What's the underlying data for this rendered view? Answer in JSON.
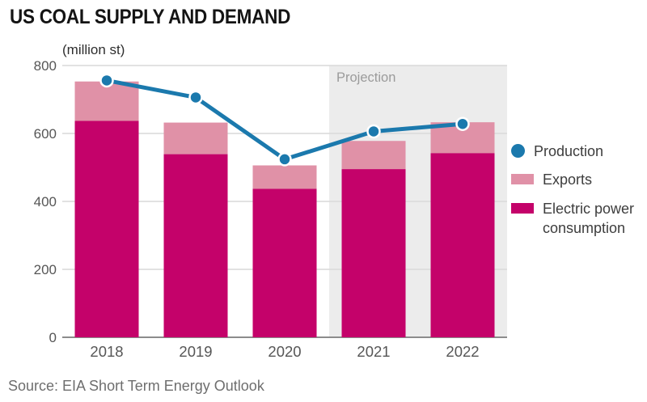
{
  "header": {
    "title": "US COAL SUPPLY AND DEMAND",
    "units": "(million st)"
  },
  "footer": {
    "source": "Source: EIA Short Term Energy Outlook"
  },
  "legend": {
    "items": [
      {
        "label": "Production",
        "marker": "dot",
        "color": "#1b79ad"
      },
      {
        "label": "Exports",
        "marker": "swatch",
        "color": "#e091a7"
      },
      {
        "label": "Electric power consumption",
        "marker": "swatch",
        "color": "#c4026a"
      }
    ]
  },
  "chart_data": {
    "type": "bar",
    "subtype": "stacked bars with line overlay",
    "categories": [
      "2018",
      "2019",
      "2020",
      "2021",
      "2022"
    ],
    "series": [
      {
        "name": "Electric power consumption",
        "type": "bar",
        "stack": "supply",
        "color": "#c4026a",
        "values": [
          637,
          539,
          437,
          495,
          542
        ]
      },
      {
        "name": "Exports",
        "type": "bar",
        "stack": "supply",
        "color": "#e091a7",
        "values": [
          116,
          93,
          69,
          83,
          91
        ]
      },
      {
        "name": "Production",
        "type": "line",
        "color": "#1b79ad",
        "values": [
          756,
          706,
          524,
          606,
          628
        ]
      }
    ],
    "title": "US COAL SUPPLY AND DEMAND",
    "xlabel": "",
    "ylabel": "(million st)",
    "ylim": [
      0,
      800
    ],
    "yticks": [
      0,
      200,
      400,
      600,
      800
    ],
    "grid": true,
    "legend_position": "right",
    "projection": {
      "label": "Projection",
      "start_category": "2021",
      "fill": "#ececec",
      "label_color": "#9b9b9b"
    }
  },
  "colors": {
    "grid": "#d9d9d9",
    "axis": "#8c8c8c",
    "tick_text": "#565656",
    "title_text": "#141414",
    "source_text": "#6e6e6e",
    "background": "#ffffff"
  }
}
